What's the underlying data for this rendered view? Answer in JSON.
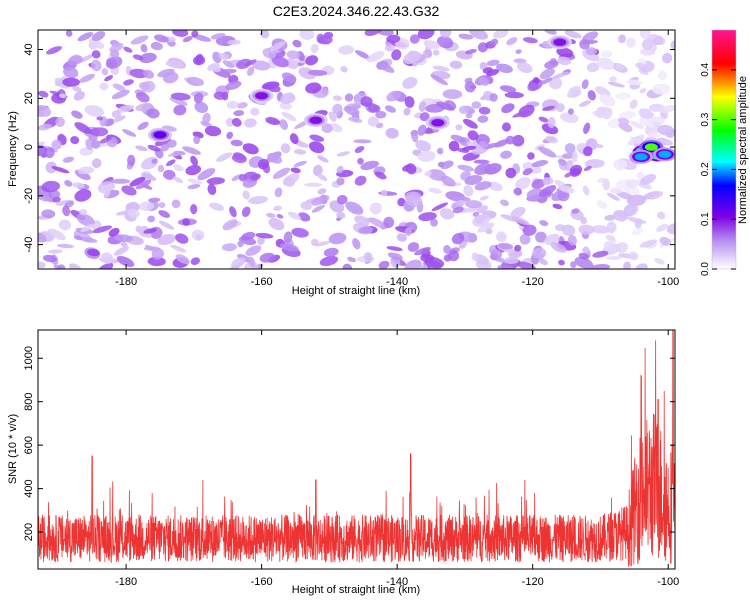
{
  "title": "C2E3.2024.346.22.43.G32",
  "chart_data": [
    {
      "type": "heatmap",
      "xlabel": "Height of straight line (km)",
      "ylabel": "Frequency (Hz)",
      "xlim": [
        -193,
        -99
      ],
      "ylim": [
        -50,
        48
      ],
      "x_ticks": [
        -180,
        -160,
        -140,
        -120,
        -100
      ],
      "y_ticks": [
        -40,
        -20,
        0,
        20,
        40
      ],
      "colorbar": {
        "label": "Normalized spectral amplitude",
        "range": [
          0,
          0.48
        ],
        "ticks": [
          0.0,
          0.1,
          0.2,
          0.3,
          0.4
        ],
        "colors": [
          "#ffffff",
          "#8a2be2",
          "#0000ff",
          "#00ffff",
          "#00ff00",
          "#ffff00",
          "#ff0000",
          "#ff1493"
        ]
      },
      "background_level": 0.05,
      "features": [
        {
          "x": -101.5,
          "y": -3,
          "value": 0.45
        },
        {
          "x": -103.5,
          "y": -2,
          "value": 0.4
        },
        {
          "x": -102.5,
          "y": 0,
          "value": 0.3
        },
        {
          "x": -104,
          "y": -4,
          "value": 0.2
        },
        {
          "x": -100.5,
          "y": -3,
          "value": 0.2
        },
        {
          "x": -175,
          "y": 5,
          "value": 0.12
        },
        {
          "x": -134,
          "y": 10,
          "value": 0.1
        },
        {
          "x": -160,
          "y": 21,
          "value": 0.1
        },
        {
          "x": -152,
          "y": 11,
          "value": 0.1
        },
        {
          "x": -116,
          "y": 43,
          "value": 0.1
        }
      ]
    },
    {
      "type": "line",
      "xlabel": "Height of straight line (km)",
      "ylabel": "SNR (10 * v/v)",
      "xlim": [
        -193,
        -99
      ],
      "ylim": [
        30,
        1130
      ],
      "x_ticks": [
        -180,
        -160,
        -140,
        -120,
        -100
      ],
      "y_ticks": [
        200,
        400,
        600,
        800,
        1000
      ],
      "color": "#ee3333",
      "baseline": 170,
      "noise_amplitude": 110,
      "profile": [
        {
          "x": -193,
          "y": 170
        },
        {
          "x": -110,
          "y": 170
        },
        {
          "x": -106,
          "y": 200
        },
        {
          "x": -104,
          "y": 380
        },
        {
          "x": -102,
          "y": 420
        },
        {
          "x": -101,
          "y": 380
        },
        {
          "x": -100,
          "y": 320
        },
        {
          "x": -99.2,
          "y": 330
        }
      ],
      "peaks": [
        {
          "x": -185,
          "y": 550
        },
        {
          "x": -138,
          "y": 560
        },
        {
          "x": -152,
          "y": 440
        },
        {
          "x": -104,
          "y": 920
        },
        {
          "x": -101.5,
          "y": 810
        },
        {
          "x": -99.3,
          "y": 1130
        }
      ]
    }
  ]
}
